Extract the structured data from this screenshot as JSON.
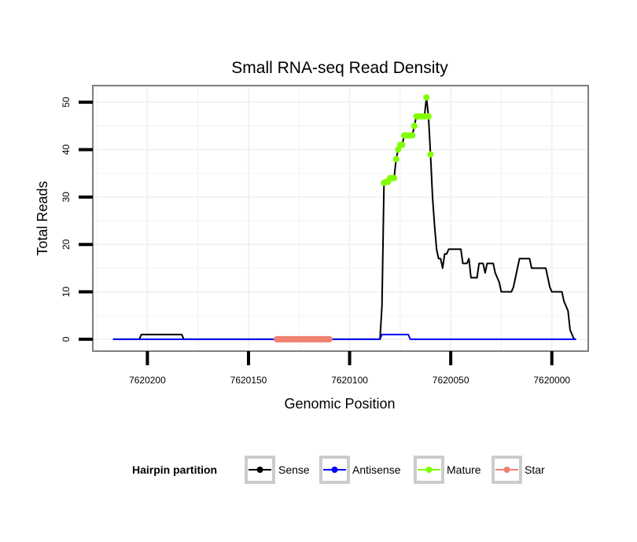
{
  "chart_data": {
    "type": "line",
    "title": "Small RNA-seq Read Density",
    "xlabel": "Genomic Position",
    "ylabel": "Total Reads",
    "x_reversed": true,
    "xlim": [
      7620227,
      7619982
    ],
    "ylim": [
      -2.5,
      53.5
    ],
    "xticks": [
      7620200,
      7620150,
      7620100,
      7620050,
      7620000
    ],
    "xtick_labels": [
      "7620200",
      "7620150",
      "7620100",
      "7620050",
      "7620000"
    ],
    "yticks": [
      0,
      10,
      20,
      30,
      40,
      50
    ],
    "ytick_labels": [
      "0",
      "10",
      "20",
      "30",
      "40",
      "50"
    ],
    "colors": {
      "sense": "#000000",
      "antisense": "#0000ff",
      "mature": "#7fff00",
      "star": "#f08070",
      "panel_border": "#7f7f7f",
      "grid": "#f2f2f2"
    },
    "legend": {
      "title": "Hairpin partition",
      "position": "bottom",
      "entries": [
        "Sense",
        "Antisense",
        "Mature",
        "Star"
      ]
    },
    "series": [
      {
        "name": "Sense",
        "key": "sense",
        "kind": "line",
        "points": [
          [
            7620217,
            0
          ],
          [
            7620204,
            0
          ],
          [
            7620203,
            1
          ],
          [
            7620183,
            1
          ],
          [
            7620182,
            0
          ],
          [
            7620085,
            0
          ],
          [
            7620084,
            7
          ],
          [
            7620083,
            33
          ],
          [
            7620082,
            33.2
          ],
          [
            7620080,
            34
          ],
          [
            7620078,
            34
          ],
          [
            7620077,
            38
          ],
          [
            7620076,
            40
          ],
          [
            7620075,
            41
          ],
          [
            7620074,
            41
          ],
          [
            7620073,
            43
          ],
          [
            7620071,
            43
          ],
          [
            7620070,
            43
          ],
          [
            7620069,
            43
          ],
          [
            7620068,
            45
          ],
          [
            7620067,
            47
          ],
          [
            7620066,
            47
          ],
          [
            7620064,
            47
          ],
          [
            7620063,
            47
          ],
          [
            7620062,
            51
          ],
          [
            7620061,
            47
          ],
          [
            7620060,
            39
          ],
          [
            7620059,
            30
          ],
          [
            7620058,
            24
          ],
          [
            7620057,
            19
          ],
          [
            7620056,
            17
          ],
          [
            7620055,
            17
          ],
          [
            7620054,
            15
          ],
          [
            7620053,
            18
          ],
          [
            7620052,
            18
          ],
          [
            7620051,
            19
          ],
          [
            7620045,
            19
          ],
          [
            7620044,
            16
          ],
          [
            7620042,
            16
          ],
          [
            7620041,
            17
          ],
          [
            7620040,
            13
          ],
          [
            7620037,
            13
          ],
          [
            7620036,
            16
          ],
          [
            7620034,
            16
          ],
          [
            7620033,
            14
          ],
          [
            7620032,
            16
          ],
          [
            7620029,
            16
          ],
          [
            7620028,
            14
          ],
          [
            7620026,
            12
          ],
          [
            7620025,
            10
          ],
          [
            7620020,
            10
          ],
          [
            7620019,
            11
          ],
          [
            7620016,
            17
          ],
          [
            7620011,
            17
          ],
          [
            7620010,
            15
          ],
          [
            7620003,
            15
          ],
          [
            7620002,
            13
          ],
          [
            7620001,
            11
          ],
          [
            7620000,
            10
          ],
          [
            7619995,
            10
          ],
          [
            7619994,
            8
          ],
          [
            7619993,
            7
          ],
          [
            7619992,
            6
          ],
          [
            7619991,
            2
          ],
          [
            7619990,
            1
          ],
          [
            7619989,
            0
          ],
          [
            7619988,
            0
          ]
        ]
      },
      {
        "name": "Antisense",
        "key": "antisense",
        "kind": "line",
        "points": [
          [
            7620217,
            0
          ],
          [
            7620085,
            0
          ],
          [
            7620084,
            1
          ],
          [
            7620071,
            1
          ],
          [
            7620070,
            0
          ],
          [
            7619988,
            0
          ]
        ]
      },
      {
        "name": "Mature",
        "key": "mature",
        "kind": "points",
        "points": [
          [
            7620083,
            33
          ],
          [
            7620082,
            33.2
          ],
          [
            7620081,
            33.2
          ],
          [
            7620080,
            34
          ],
          [
            7620079,
            34
          ],
          [
            7620078,
            34
          ],
          [
            7620077,
            38
          ],
          [
            7620076,
            40
          ],
          [
            7620075,
            41
          ],
          [
            7620074,
            41
          ],
          [
            7620073,
            43
          ],
          [
            7620072,
            43
          ],
          [
            7620071,
            43
          ],
          [
            7620070,
            43
          ],
          [
            7620069,
            43
          ],
          [
            7620068,
            45
          ],
          [
            7620067,
            47
          ],
          [
            7620066,
            47
          ],
          [
            7620065,
            47
          ],
          [
            7620064,
            47
          ],
          [
            7620063,
            47
          ],
          [
            7620062,
            51
          ],
          [
            7620061,
            47
          ],
          [
            7620060,
            39
          ]
        ]
      },
      {
        "name": "Star",
        "key": "star",
        "kind": "band",
        "from": 7620136,
        "to": 7620110,
        "value": 0
      }
    ]
  }
}
